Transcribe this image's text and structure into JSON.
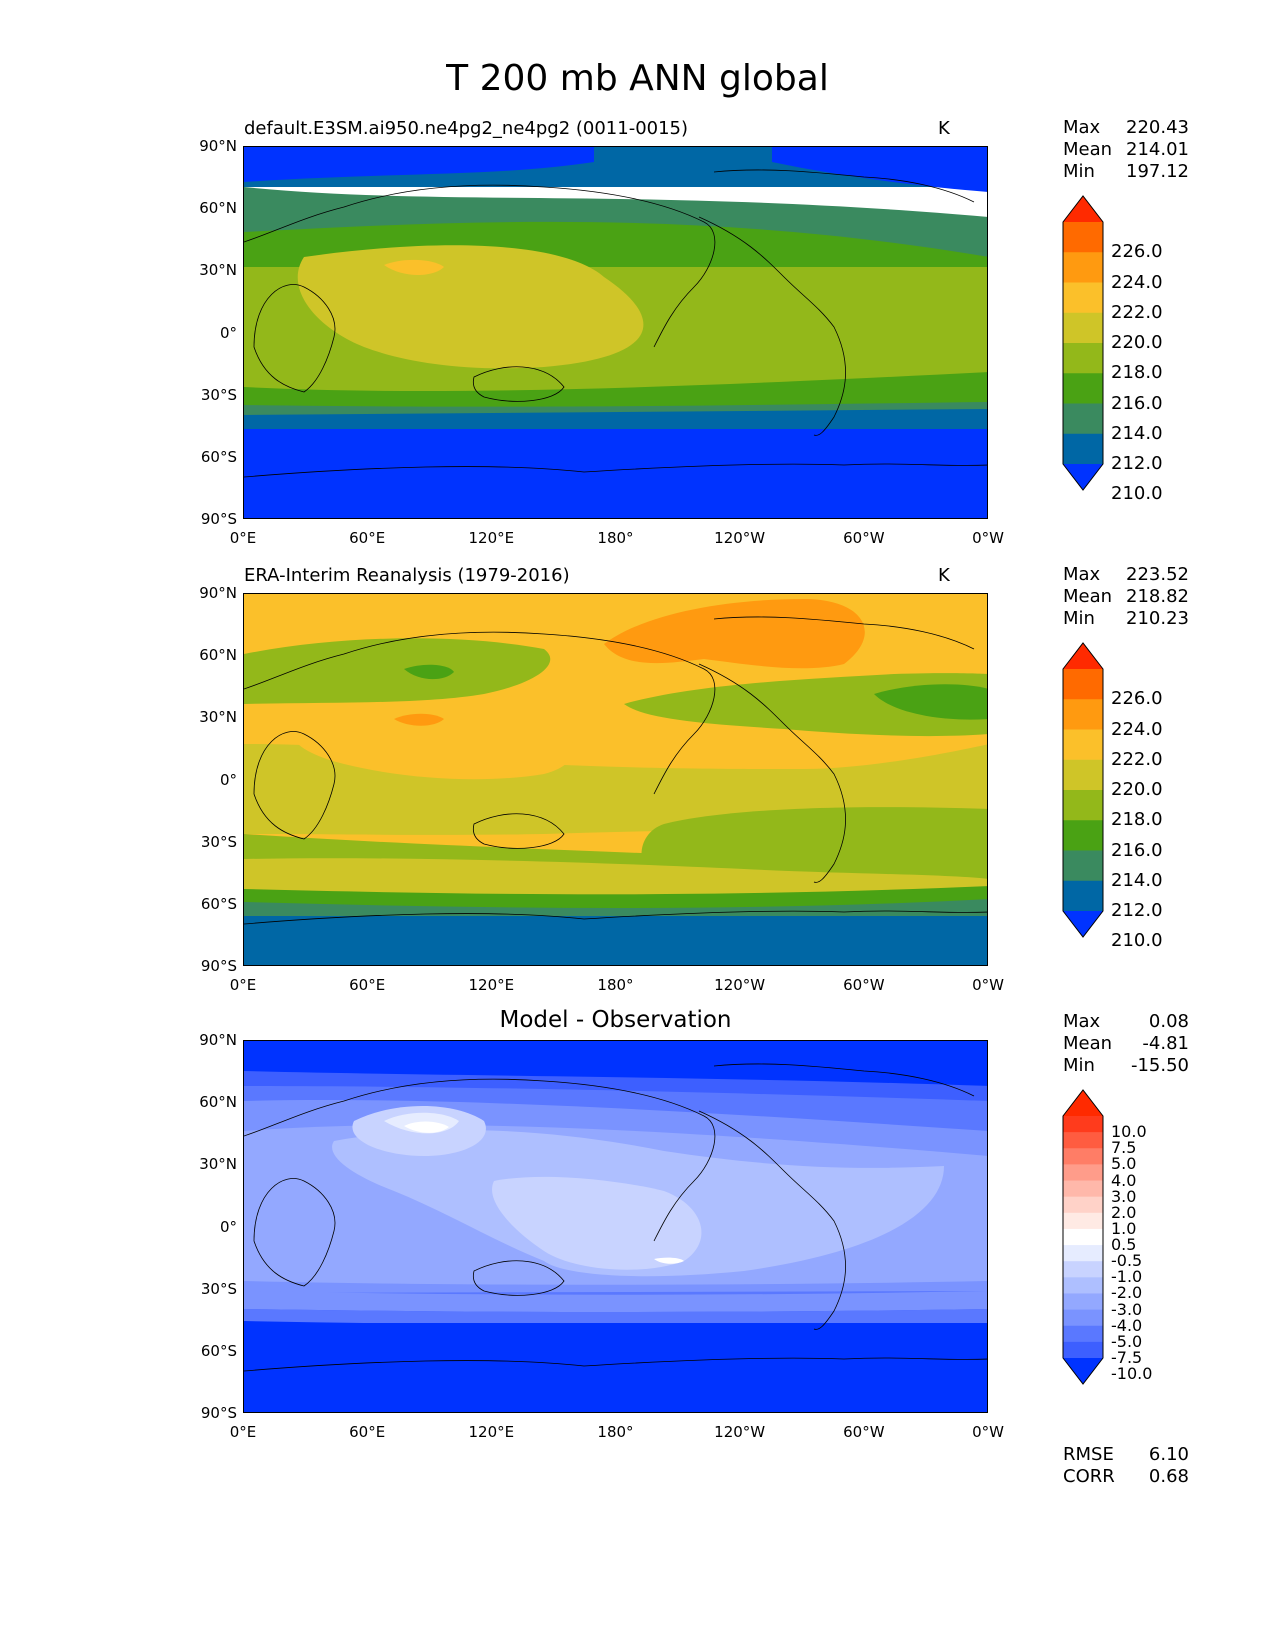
{
  "title": "T 200 mb ANN global",
  "panels": [
    {
      "title": "default.E3SM.ai950.ne4pg2_ne4pg2 (0011-0015)",
      "units": "K",
      "stats": {
        "max": "220.43",
        "mean": "214.01",
        "min": "197.12"
      }
    },
    {
      "title": "ERA-Interim Reanalysis (1979-2016)",
      "units": "K",
      "stats": {
        "max": "223.52",
        "mean": "218.82",
        "min": "210.23"
      }
    },
    {
      "title": "Model - Observation",
      "units": "",
      "stats": {
        "max": "0.08",
        "mean": "-4.81",
        "min": "-15.50"
      }
    }
  ],
  "stat_labels": {
    "max": "Max",
    "mean": "Mean",
    "min": "Min"
  },
  "metrics": {
    "rmse_label": "RMSE",
    "rmse": "6.10",
    "corr_label": "CORR",
    "corr": "0.68"
  },
  "colorbar_abs": {
    "labels": [
      "226.0",
      "224.0",
      "222.0",
      "220.0",
      "218.0",
      "216.0",
      "214.0",
      "212.0",
      "210.0"
    ],
    "colors": [
      "#ff2a00",
      "#ff6a00",
      "#ff9a10",
      "#fbc02a",
      "#cfc528",
      "#93b81a",
      "#4aa214",
      "#3a8a5f",
      "#0067a5",
      "#0033ff"
    ]
  },
  "colorbar_diff": {
    "labels": [
      "10.0",
      "7.5",
      "5.0",
      "4.0",
      "3.0",
      "2.0",
      "1.0",
      "0.5",
      "-0.5",
      "-1.0",
      "-2.0",
      "-3.0",
      "-4.0",
      "-5.0",
      "-7.5",
      "-10.0"
    ],
    "colors": [
      "#ff2a00",
      "#ff3b1c",
      "#ff5c40",
      "#ff7d66",
      "#ff9c8a",
      "#ffb8aa",
      "#ffd2c8",
      "#ffeae4",
      "#ffffff",
      "#e6ecff",
      "#c8d3ff",
      "#aebfff",
      "#93a8ff",
      "#7a93ff",
      "#5a78ff",
      "#3d5fff",
      "#0033ff"
    ]
  },
  "axis": {
    "y_ticks": [
      "90°N",
      "60°N",
      "30°N",
      "0°",
      "30°S",
      "60°S",
      "90°S"
    ],
    "x_ticks": [
      "0°E",
      "60°E",
      "120°E",
      "180°",
      "120°W",
      "60°W",
      "0°W"
    ]
  }
}
